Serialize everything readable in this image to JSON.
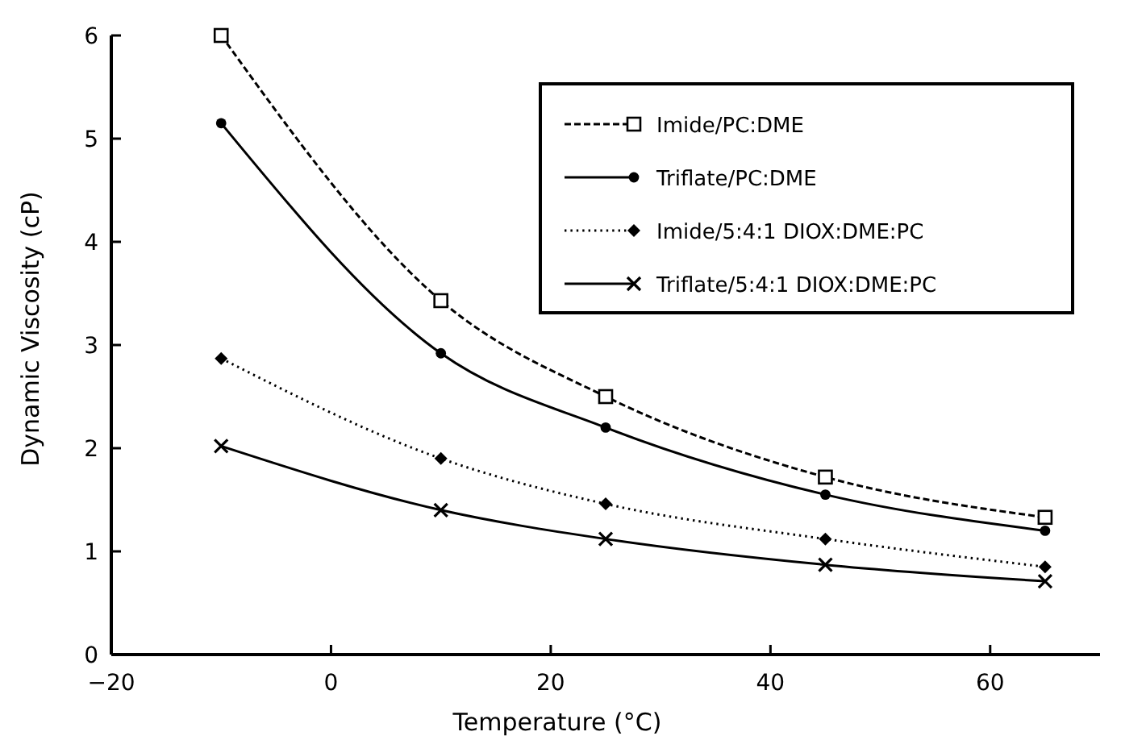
{
  "chart_data": {
    "type": "line",
    "xlabel": "Temperature (°C)",
    "ylabel": "Dynamic Viscosity (cP)",
    "x": [
      -10,
      10,
      25,
      45,
      65
    ],
    "series": [
      {
        "name": "Imide/PC:DME",
        "color": "#000000",
        "values": [
          6.0,
          3.43,
          2.5,
          1.72,
          1.33
        ],
        "marker": "square",
        "line_style": "dashed"
      },
      {
        "name": "Triflate/PC:DME",
        "color": "#000000",
        "values": [
          5.15,
          2.92,
          2.2,
          1.55,
          1.2
        ],
        "marker": "circle",
        "line_style": "solid"
      },
      {
        "name": "Imide/5:4:1 DIOX:DME:PC",
        "color": "#000000",
        "values": [
          2.87,
          1.9,
          1.46,
          1.12,
          0.85
        ],
        "marker": "diamond",
        "line_style": "dotted"
      },
      {
        "name": "Triflate/5:4:1 DIOX:DME:PC",
        "color": "#000000",
        "values": [
          2.02,
          1.4,
          1.12,
          0.87,
          0.71
        ],
        "marker": "cross",
        "line_style": "solid"
      }
    ],
    "xlim": [
      -20,
      70
    ],
    "xticks": [
      -20,
      0,
      20,
      40,
      60
    ],
    "ylim": [
      0,
      6
    ],
    "yticks": [
      0,
      1,
      2,
      3,
      4,
      5,
      6
    ],
    "grid": false,
    "legend": "top right"
  }
}
